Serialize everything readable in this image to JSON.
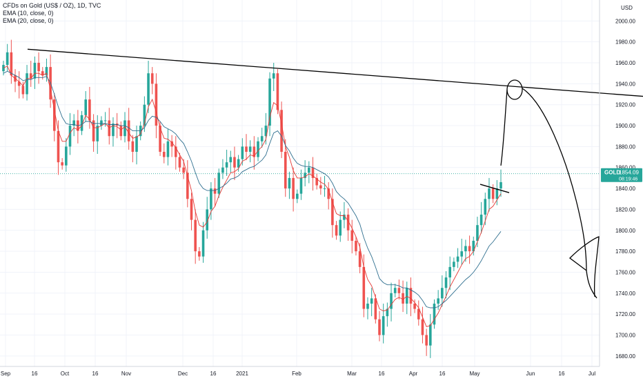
{
  "legend": {
    "symbol": "CFDs on Gold (US$ / OZ), 1D, TVC",
    "ema10": "EMA (10, close, 0)",
    "ema20": "EMA (20, close, 0)"
  },
  "price_badge": {
    "ticker": "GOLD",
    "price": "1854.09",
    "countdown": "08:19:46",
    "color": "#26a69a"
  },
  "colors": {
    "up": "#26a69a",
    "down": "#ef5350",
    "ema10": "#e53935",
    "ema20": "#2f6f8f",
    "drawing": "#000000"
  },
  "chart_data": {
    "type": "candlestick",
    "title": "CFDs on Gold (US$ / OZ), 1D, TVC",
    "y_axis_label": "USD",
    "ylim": [
      1670,
      2020
    ],
    "y_ticks": [
      2000,
      1980,
      1960,
      1940,
      1920,
      1900,
      1880,
      1860,
      1840,
      1820,
      1800,
      1780,
      1760,
      1740,
      1720,
      1700,
      1680
    ],
    "x_ticks": [
      "Sep",
      "16",
      "Oct",
      "16",
      "Nov",
      "Dec",
      "16",
      "2021",
      "Feb",
      "Mar",
      "16",
      "Apr",
      "16",
      "May",
      "Jun",
      "16",
      "Jul"
    ],
    "last_price": 1854.09,
    "trendline": [
      [
        1973,
        1928
      ]
    ],
    "series": [
      {
        "name": "close",
        "values": [
          1958,
          1970,
          1948,
          1942,
          1938,
          1930,
          1950,
          1945,
          1960,
          1952,
          1948,
          1956,
          1925,
          1895,
          1865,
          1862,
          1880,
          1900,
          1905,
          1895,
          1910,
          1925,
          1905,
          1885,
          1900,
          1905,
          1905,
          1890,
          1902,
          1900,
          1890,
          1905,
          1885,
          1875,
          1890,
          1900,
          1920,
          1950,
          1940,
          1900,
          1875,
          1870,
          1885,
          1880,
          1870,
          1860,
          1855,
          1830,
          1810,
          1780,
          1775,
          1800,
          1820,
          1840,
          1835,
          1855,
          1860,
          1865,
          1870,
          1860,
          1868,
          1880,
          1875,
          1880,
          1870,
          1885,
          1890,
          1900,
          1945,
          1950,
          1915,
          1875,
          1840,
          1850,
          1830,
          1835,
          1850,
          1855,
          1860,
          1850,
          1843,
          1840,
          1840,
          1830,
          1805,
          1795,
          1810,
          1815,
          1800,
          1790,
          1780,
          1765,
          1725,
          1730,
          1735,
          1715,
          1700,
          1718,
          1725,
          1740,
          1745,
          1740,
          1730,
          1745,
          1730,
          1725,
          1715,
          1700,
          1690,
          1710,
          1730,
          1735,
          1745,
          1755,
          1765,
          1770,
          1775,
          1780,
          1785,
          1780,
          1790,
          1805,
          1815,
          1830,
          1840,
          1830,
          1840,
          1846
        ]
      },
      {
        "name": "EMA (10, close, 0)",
        "values": [
          1955,
          1957,
          1948,
          1945,
          1942,
          1938,
          1945,
          1945,
          1950,
          1950,
          1948,
          1950,
          1935,
          1915,
          1895,
          1885,
          1885,
          1893,
          1898,
          1896,
          1900,
          1910,
          1906,
          1898,
          1898,
          1900,
          1902,
          1898,
          1900,
          1899,
          1896,
          1899,
          1893,
          1888,
          1889,
          1892,
          1902,
          1918,
          1925,
          1913,
          1898,
          1888,
          1887,
          1884,
          1879,
          1872,
          1866,
          1852,
          1838,
          1818,
          1805,
          1803,
          1808,
          1818,
          1823,
          1833,
          1841,
          1848,
          1855,
          1856,
          1859,
          1866,
          1868,
          1872,
          1871,
          1876,
          1880,
          1887,
          1908,
          1922,
          1919,
          1902,
          1880,
          1870,
          1857,
          1850,
          1850,
          1851,
          1854,
          1852,
          1849,
          1846,
          1844,
          1839,
          1827,
          1816,
          1814,
          1814,
          1809,
          1802,
          1794,
          1784,
          1765,
          1753,
          1747,
          1736,
          1725,
          1723,
          1724,
          1729,
          1734,
          1736,
          1734,
          1737,
          1735,
          1731,
          1726,
          1717,
          1708,
          1709,
          1715,
          1721,
          1729,
          1737,
          1746,
          1753,
          1760,
          1767,
          1773,
          1775,
          1780,
          1789,
          1798,
          1809,
          1820,
          1823,
          1829,
          1835
        ]
      },
      {
        "name": "EMA (20, close, 0)",
        "values": [
          1950,
          1952,
          1950,
          1948,
          1946,
          1943,
          1944,
          1944,
          1946,
          1946,
          1946,
          1947,
          1941,
          1930,
          1918,
          1908,
          1902,
          1901,
          1901,
          1900,
          1901,
          1904,
          1904,
          1902,
          1902,
          1902,
          1902,
          1901,
          1901,
          1901,
          1900,
          1900,
          1898,
          1895,
          1895,
          1895,
          1898,
          1905,
          1909,
          1908,
          1904,
          1899,
          1897,
          1895,
          1892,
          1887,
          1883,
          1875,
          1866,
          1855,
          1845,
          1840,
          1838,
          1838,
          1838,
          1840,
          1842,
          1845,
          1849,
          1850,
          1852,
          1856,
          1858,
          1860,
          1861,
          1864,
          1867,
          1872,
          1883,
          1893,
          1895,
          1890,
          1881,
          1876,
          1869,
          1864,
          1862,
          1861,
          1861,
          1860,
          1858,
          1856,
          1854,
          1851,
          1845,
          1837,
          1833,
          1830,
          1826,
          1820,
          1814,
          1806,
          1793,
          1783,
          1775,
          1765,
          1754,
          1750,
          1748,
          1748,
          1748,
          1747,
          1745,
          1745,
          1743,
          1741,
          1738,
          1733,
          1727,
          1726,
          1726,
          1727,
          1730,
          1733,
          1737,
          1741,
          1745,
          1749,
          1753,
          1756,
          1760,
          1765,
          1771,
          1778,
          1785,
          1789,
          1794,
          1799
        ]
      }
    ]
  }
}
